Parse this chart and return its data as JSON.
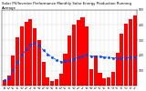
{
  "title": "Solar PV/Inverter Performance Monthly Solar Energy Production Running Average",
  "bar_color": "#ff0000",
  "line_color": "#0055ff",
  "dot_color": "#0044dd",
  "bg_color": "#ffffff",
  "grid_color": "#888888",
  "months": [
    "Jan\n09",
    "Feb\n09",
    "Mar\n09",
    "Apr\n09",
    "May\n09",
    "Jun\n09",
    "Jul\n09",
    "Aug\n09",
    "Sep\n09",
    "Oct\n09",
    "Nov\n09",
    "Dec\n09",
    "Jan\n10",
    "Feb\n10",
    "Mar\n10",
    "Apr\n10",
    "May\n10",
    "Jun\n10",
    "Jul\n10",
    "Aug\n10",
    "Sep\n10",
    "Oct\n10",
    "Nov\n10",
    "Dec\n10",
    "Jan\n11",
    "Feb\n11",
    "Mar\n11",
    "Apr\n11",
    "May\n11",
    "Jun\n11",
    "Jul\n11"
  ],
  "values": [
    35,
    70,
    200,
    320,
    390,
    420,
    440,
    380,
    300,
    160,
    55,
    30,
    45,
    80,
    210,
    330,
    400,
    430,
    450,
    390,
    110,
    200,
    85,
    48,
    55,
    90,
    220,
    340,
    410,
    440,
    460
  ],
  "running_avg": [
    35,
    52,
    102,
    156,
    203,
    239,
    268,
    282,
    263,
    233,
    208,
    185,
    171,
    160,
    163,
    170,
    178,
    187,
    196,
    203,
    195,
    194,
    192,
    189,
    186,
    184,
    183,
    183,
    184,
    186,
    188
  ],
  "ylim": [
    0,
    500
  ],
  "yticks": [
    100,
    200,
    300,
    400,
    500
  ],
  "ylabel_right": [
    "8",
    "7",
    "6",
    "5",
    "4",
    "3",
    "2",
    "1"
  ],
  "title_fontsize": 2.8,
  "tick_fontsize": 2.2
}
